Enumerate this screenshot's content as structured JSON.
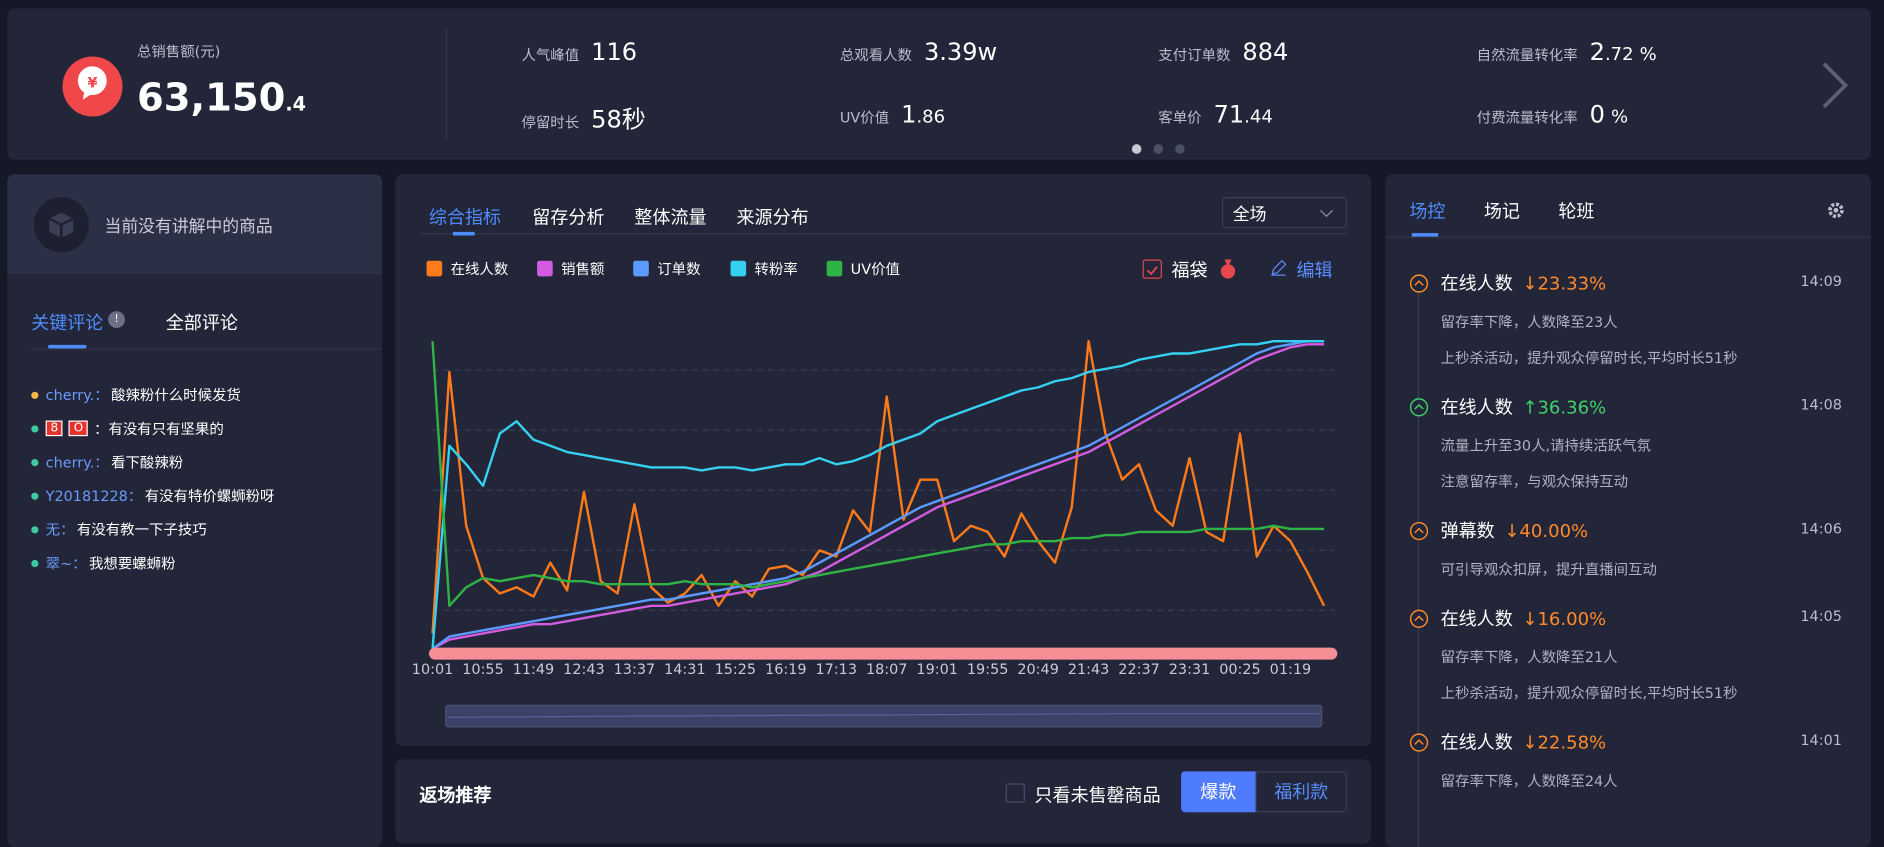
{
  "header": {
    "total_sales": {
      "label": "总销售额(元)",
      "main": "63,150",
      "decimal": ".4"
    },
    "metrics": [
      {
        "label": "人气峰值",
        "main": "116"
      },
      {
        "label": "停留时长",
        "main": "58秒"
      },
      {
        "label": "总观看人数",
        "main": "3.39w"
      },
      {
        "label": "UV价值",
        "main": "1",
        "decimal": ".86"
      },
      {
        "label": "支付订单数",
        "main": "884"
      },
      {
        "label": "客单价",
        "main": "71",
        "decimal": ".44"
      },
      {
        "label": "自然流量转化率",
        "main": "2",
        "decimal": ".72",
        "unit": "%"
      },
      {
        "label": "付费流量转化率",
        "main": "0",
        "unit": "%"
      }
    ]
  },
  "left_panel": {
    "now_explaining": "当前没有讲解中的商品",
    "tabs": [
      "关键评论",
      "全部评论"
    ],
    "comments": [
      {
        "dot": "#f5b748",
        "user": "cherry.：",
        "text": "酸辣粉什么时候发货"
      },
      {
        "dot": "#3fc9a0",
        "badges": [
          "8",
          "O"
        ],
        "text": "：有没有只有坚果的"
      },
      {
        "dot": "#3fc9a0",
        "user": "cherry.：",
        "text": "看下酸辣粉"
      },
      {
        "dot": "#3fc9a0",
        "user": "Y20181228：",
        "text": "有没有特价螺蛳粉呀"
      },
      {
        "dot": "#3fc9a0",
        "user": "无：",
        "text": "有没有教一下子技巧"
      },
      {
        "dot": "#3fc9a0",
        "user": "翠~：",
        "text": "我想要螺蛳粉"
      }
    ]
  },
  "chart_panel": {
    "tabs": [
      "综合指标",
      "留存分析",
      "整体流量",
      "来源分布"
    ],
    "scope": "全场",
    "fudai": "福袋",
    "edit": "编辑"
  },
  "chart_data": {
    "type": "line",
    "ylim": [
      0,
      100
    ],
    "categories": [
      "10:01",
      null,
      null,
      "10:55",
      null,
      null,
      "11:49",
      null,
      null,
      "12:43",
      null,
      null,
      "13:37",
      null,
      null,
      "14:31",
      null,
      null,
      "15:25",
      null,
      null,
      "16:19",
      null,
      null,
      "17:13",
      null,
      null,
      "18:07",
      null,
      null,
      "19:01",
      null,
      null,
      "19:55",
      null,
      null,
      "20:49",
      null,
      null,
      "21:43",
      null,
      null,
      "22:37",
      null,
      null,
      "23:31",
      null,
      null,
      "00:25",
      null,
      null,
      "01:19",
      null,
      null
    ],
    "series": [
      {
        "name": "在线人数",
        "color": "#ff7a1a",
        "values": [
          5,
          90,
          40,
          23,
          18,
          20,
          17,
          28,
          19,
          51,
          22,
          18,
          47,
          20,
          15,
          18,
          24,
          14,
          22,
          17,
          26,
          27,
          24,
          32,
          30,
          45,
          38,
          82,
          42,
          55,
          55,
          35,
          40,
          38,
          30,
          44,
          35,
          28,
          46,
          100,
          70,
          55,
          60,
          45,
          40,
          62,
          38,
          35,
          70,
          30,
          40,
          35,
          25,
          14
        ]
      },
      {
        "name": "销售额",
        "color": "#d35be0",
        "values": [
          0,
          3,
          4,
          5,
          6,
          7,
          8,
          8,
          9,
          10,
          11,
          12,
          13,
          14,
          14,
          15,
          16,
          17,
          18,
          19,
          20,
          21,
          23,
          25,
          28,
          31,
          34,
          37,
          40,
          43,
          46,
          48,
          50,
          52,
          54,
          56,
          58,
          60,
          62,
          64,
          67,
          70,
          73,
          76,
          79,
          82,
          85,
          88,
          91,
          94,
          96,
          98,
          99,
          99
        ]
      },
      {
        "name": "订单数",
        "color": "#5b9bff",
        "values": [
          0,
          4,
          5,
          6,
          7,
          8,
          9,
          10,
          11,
          12,
          13,
          14,
          15,
          16,
          16,
          17,
          18,
          19,
          20,
          21,
          22,
          23,
          25,
          28,
          31,
          34,
          37,
          40,
          43,
          46,
          48,
          50,
          52,
          54,
          56,
          58,
          60,
          62,
          64,
          66,
          69,
          72,
          75,
          78,
          81,
          84,
          87,
          90,
          93,
          96,
          98,
          99,
          100,
          100
        ]
      },
      {
        "name": "转粉率",
        "color": "#36d0f0",
        "values": [
          0,
          66,
          60,
          53,
          70,
          74,
          68,
          66,
          64,
          63,
          62,
          61,
          60,
          59,
          59,
          59,
          58,
          59,
          59,
          58,
          59,
          60,
          60,
          62,
          60,
          61,
          63,
          66,
          68,
          70,
          74,
          76,
          78,
          80,
          82,
          84,
          85,
          87,
          88,
          90,
          91,
          92,
          94,
          95,
          96,
          96,
          97,
          98,
          99,
          99,
          100,
          100,
          100,
          100
        ]
      },
      {
        "name": "UV价值",
        "color": "#2fb344",
        "values": [
          100,
          14,
          20,
          23,
          22,
          23,
          24,
          23,
          22,
          22,
          21,
          21,
          21,
          21,
          21,
          22,
          21,
          21,
          21,
          20,
          21,
          22,
          23,
          24,
          25,
          26,
          27,
          28,
          29,
          30,
          31,
          32,
          33,
          34,
          34,
          35,
          35,
          35,
          36,
          36,
          37,
          37,
          38,
          38,
          38,
          38,
          39,
          39,
          39,
          39,
          40,
          39,
          39,
          39
        ]
      }
    ]
  },
  "rerun": {
    "title": "返场推荐",
    "filter": "只看未售罄商品",
    "buttons": [
      "爆款",
      "福利款"
    ]
  },
  "control": {
    "tabs": [
      "场控",
      "场记",
      "轮班"
    ],
    "events": [
      {
        "title": "在线人数",
        "change": "↓23.33%",
        "color": "#ff8a2a",
        "time": "14:09",
        "notes": [
          "留存率下降，人数降至23人",
          "上秒杀活动，提升观众停留时长,平均时长51秒"
        ]
      },
      {
        "title": "在线人数",
        "change": "↑36.36%",
        "color": "#3fd06a",
        "time": "14:08",
        "notes": [
          "流量上升至30人,请持续活跃气氛",
          "注意留存率，与观众保持互动"
        ]
      },
      {
        "title": "弹幕数",
        "change": "↓40.00%",
        "color": "#ff8a2a",
        "time": "14:06",
        "notes": [
          "可引导观众扣屏，提升直播间互动"
        ]
      },
      {
        "title": "在线人数",
        "change": "↓16.00%",
        "color": "#ff8a2a",
        "time": "14:05",
        "notes": [
          "留存率下降，人数降至21人",
          "上秒杀活动，提升观众停留时长,平均时长51秒"
        ]
      },
      {
        "title": "在线人数",
        "change": "↓22.58%",
        "color": "#ff8a2a",
        "time": "14:01",
        "notes": [
          "留存率下降，人数降至24人"
        ]
      }
    ]
  }
}
